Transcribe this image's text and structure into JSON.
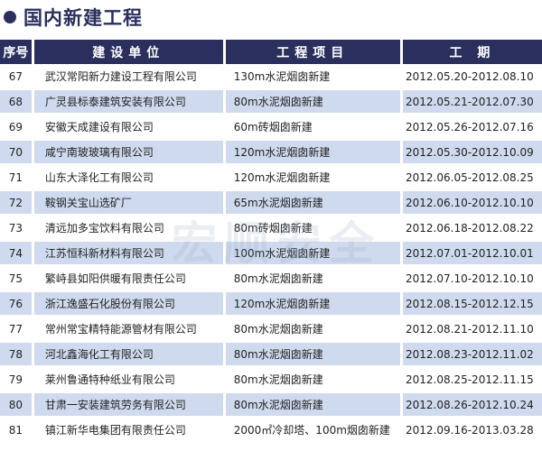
{
  "title": "国内新建工程",
  "watermark": "宏顺安全",
  "colors": {
    "header_bg": "#2a2f5e",
    "alt_row": "#cfdaee"
  },
  "table": {
    "headers": [
      "序号",
      "建设单位",
      "工程项目",
      "工  期"
    ],
    "rows": [
      [
        "67",
        "武汉常阳新力建设工程有限公司",
        "130m水泥烟囱新建",
        "2012.05.20-2012.08.10"
      ],
      [
        "68",
        "广灵县标泰建筑安装有限公司",
        "80m水泥烟囱新建",
        "2012.05.21-2012.07.30"
      ],
      [
        "69",
        "安徽天成建设有限公司",
        "60m砖烟囱新建",
        "2012.05.26-2012.07.16"
      ],
      [
        "70",
        "咸宁南玻玻璃有限公司",
        "120m水泥烟囱新建",
        "2012.05.30-2012.10.09"
      ],
      [
        "71",
        "山东大泽化工有限公司",
        "120m水泥烟囱新建",
        "2012.06.05-2012.08.25"
      ],
      [
        "72",
        "鞍钢关宝山选矿厂",
        "65m水泥烟囱新建",
        "2012.06.10-2012.10.10"
      ],
      [
        "73",
        "清远加多宝饮料有限公司",
        "80m砖烟囱新建",
        "2012.06.18-2012.08.22"
      ],
      [
        "74",
        "江苏恒科新材料有限公司",
        "100m水泥烟囱新建",
        "2012.07.01-2012.10.01"
      ],
      [
        "75",
        "繁峙县如阳供暖有限责任公司",
        "80m水泥烟囱新建",
        "2012.07.10-2012.10.10"
      ],
      [
        "76",
        "浙江逸盛石化股份有限公司",
        "120m水泥烟囱新建",
        "2012.08.15-2012.12.15"
      ],
      [
        "77",
        "常州常宝精特能源管材有限公司",
        "80m水泥烟囱新建",
        "2012.08.21-2012.11.10"
      ],
      [
        "78",
        "河北鑫海化工有限公司",
        "80m水泥烟囱新建",
        "2012.08.23-2012.11.02"
      ],
      [
        "79",
        "莱州鲁通特种纸业有限公司",
        "80m水泥烟囱新建",
        "2012.08.25-2012.11.15"
      ],
      [
        "80",
        "甘肃一安装建筑劳务有限公司",
        "80m水泥烟囱新建",
        "2012.08.26-2012.10.24"
      ],
      [
        "81",
        "镇江新华电集团有限责任公司",
        "2000㎡冷却塔、100m烟囱新建",
        "2012.09.16-2013.03.28"
      ]
    ]
  }
}
